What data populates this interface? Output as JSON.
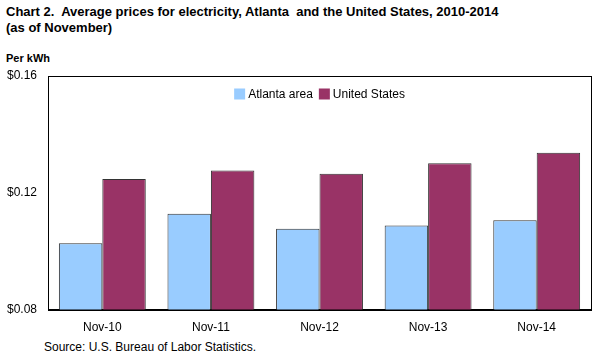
{
  "chart_data": {
    "type": "bar",
    "title": [
      "Chart 2.  Average prices for electricity, Atlanta  and the United States, 2010-2014",
      "(as of November)"
    ],
    "ylabel": "Per kWh",
    "source": "Source: U.S. Bureau of Labor Statistics.",
    "categories": [
      "Nov-10",
      "Nov-11",
      "Nov-12",
      "Nov-13",
      "Nov-14"
    ],
    "series": [
      {
        "name": "Atlanta area",
        "color": "#99ccff",
        "values": [
          0.1027,
          0.1128,
          0.1077,
          0.1088,
          0.1106
        ]
      },
      {
        "name": "United States",
        "color": "#993366",
        "values": [
          0.1247,
          0.1276,
          0.1265,
          0.1301,
          0.1337
        ]
      }
    ],
    "ylim": [
      0.08,
      0.16
    ],
    "yticks": [
      {
        "value": 0.08,
        "label": "$0.08"
      },
      {
        "value": 0.12,
        "label": "$0.12"
      },
      {
        "value": 0.16,
        "label": "$0.16"
      }
    ],
    "grid": false,
    "legend": "top"
  }
}
